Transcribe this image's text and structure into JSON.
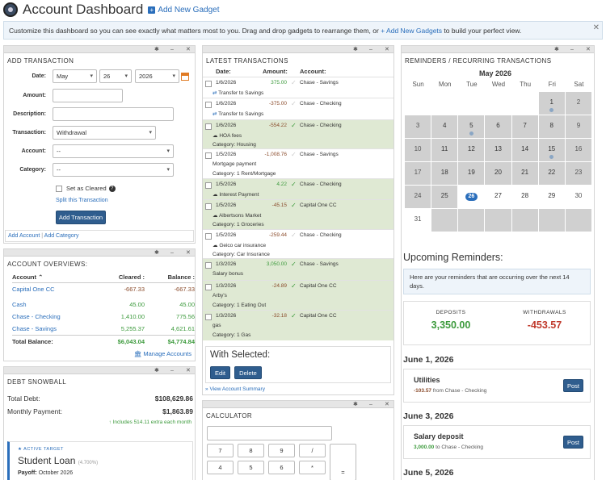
{
  "header": {
    "title": "Account Dashboard",
    "add_gadget": "Add New Gadget",
    "notice_prefix": "Customize this dashboard so you can see exactly what matters most to you. Drag and drop gadgets to rearrange them, or",
    "notice_link": "+ Add New Gadgets",
    "notice_suffix": "to build your perfect view."
  },
  "add_transaction": {
    "title": "ADD TRANSACTION",
    "date_label": "Date:",
    "month": "May",
    "day": "26",
    "year": "2026",
    "amount_label": "Amount:",
    "description_label": "Description:",
    "transaction_label": "Transaction:",
    "transaction_value": "Withdrawal",
    "account_label": "Account:",
    "account_value": "--",
    "category_label": "Category:",
    "category_value": "--",
    "set_cleared": "Set as Cleared",
    "split": "Split this Transaction",
    "submit": "Add Transaction",
    "add_account": "Add Account",
    "sep": "|",
    "add_category": "Add Category"
  },
  "account_overviews": {
    "title": "ACCOUNT OVERVIEWS:",
    "col_account": "Account",
    "col_cleared": "Cleared :",
    "col_balance": "Balance :",
    "rows": [
      {
        "name": "Capital One CC",
        "cleared": "-667.33",
        "balance": "-667.33"
      },
      {
        "name": "Cash",
        "cleared": "45.00",
        "balance": "45.00"
      },
      {
        "name": "Chase - Checking",
        "cleared": "1,410.00",
        "balance": "775.56"
      },
      {
        "name": "Chase - Savings",
        "cleared": "5,255.37",
        "balance": "4,621.61"
      }
    ],
    "total_label": "Total Balance:",
    "total_cleared": "$6,043.04",
    "total_balance": "$4,774.84",
    "manage": "Manage Accounts"
  },
  "debt_snowball": {
    "title": "DEBT SNOWBALL",
    "total_debt_label": "Total Debt:",
    "total_debt": "$108,629.86",
    "monthly_label": "Monthly Payment:",
    "monthly": "$1,863.89",
    "extra": "Includes 514.11 extra each month",
    "active_label": "ACTIVE TARGET",
    "target_name": "Student Loan",
    "target_rate": "(4.700%)",
    "payoff_label": "Payoff:",
    "payoff": "October 2026"
  },
  "latest_transactions": {
    "title": "LATEST TRANSACTIONS",
    "col_date": "Date:",
    "col_amount": "Amount:",
    "col_account": "Account:",
    "rows": [
      {
        "date": "1/6/2026",
        "amount": "375.00",
        "account": "Chase - Savings",
        "sub": "Transfer to Savings",
        "sub2": "",
        "cleared": false
      },
      {
        "date": "1/6/2026",
        "amount": "-375.00",
        "account": "Chase - Checking",
        "sub": "Transfer to Savings",
        "sub2": "",
        "cleared": false
      },
      {
        "date": "1/6/2026",
        "amount": "-554.22",
        "account": "Chase - Checking",
        "sub": "HOA fees",
        "sub2": "Category: Housing",
        "cleared": true
      },
      {
        "date": "1/5/2026",
        "amount": "-1,008.76",
        "account": "Chase - Savings",
        "sub": "Mortgage payment",
        "sub2": "Category: 1 Rent/Mortgage",
        "cleared": false
      },
      {
        "date": "1/5/2026",
        "amount": "4.22",
        "account": "Chase - Checking",
        "sub": "Interest Payment",
        "sub2": "",
        "cleared": true
      },
      {
        "date": "1/5/2026",
        "amount": "-45.15",
        "account": "Capital One CC",
        "sub": "Albertsons Market",
        "sub2": "Category: 1 Groceries",
        "cleared": true
      },
      {
        "date": "1/5/2026",
        "amount": "-259.44",
        "account": "Chase - Checking",
        "sub": "Geico car insurance",
        "sub2": "Category: Car Insurance",
        "cleared": false
      },
      {
        "date": "1/3/2026",
        "amount": "3,050.00",
        "account": "Chase - Savings",
        "sub": "Salary bonus",
        "sub2": "",
        "cleared": true
      },
      {
        "date": "1/3/2026",
        "amount": "-24.89",
        "account": "Capital One CC",
        "sub": "Arby's",
        "sub2": "Category: 1 Eating Out",
        "cleared": true
      },
      {
        "date": "1/3/2026",
        "amount": "-32.18",
        "account": "Capital One CC",
        "sub": "gas",
        "sub2": "Category: 1 Gas",
        "cleared": true
      }
    ],
    "with_selected": "With Selected:",
    "edit": "Edit",
    "delete": "Delete",
    "view_summary": "View Account Summary"
  },
  "calculator": {
    "title": "CALCULATOR",
    "keys": [
      "7",
      "8",
      "9",
      "/",
      "4",
      "5",
      "6",
      "*",
      "="
    ]
  },
  "reminders": {
    "title": "REMINDERS / RECURRING TRANSACTIONS",
    "month": "May 2026",
    "weekdays": [
      "Sun",
      "Mon",
      "Tue",
      "Wed",
      "Thu",
      "Fri",
      "Sat"
    ],
    "upcoming_title": "Upcoming Reminders:",
    "info": "Here are your reminders that are occurring over the next 14 days.",
    "deposits_label": "DEPOSITS",
    "deposits": "3,350.00",
    "withdrawals_label": "WITHDRAWALS",
    "withdrawals": "-453.57",
    "items": [
      {
        "date": "June 1, 2026",
        "name": "Utilities",
        "amount": "-103.57",
        "dir": "from",
        "acct": "Chase - Checking",
        "post": "Post"
      },
      {
        "date": "June 3, 2026",
        "name": "Salary deposit",
        "amount": "3,000.00",
        "dir": "to",
        "acct": "Chase - Checking",
        "post": "Post"
      },
      {
        "date": "June 5, 2026"
      }
    ]
  },
  "colors": {
    "accent": "#2a6ebb",
    "button": "#2f5d8e",
    "cleared_row": "#dfe9d3",
    "positive": "#3c9a3c",
    "negative": "#c0392b"
  }
}
